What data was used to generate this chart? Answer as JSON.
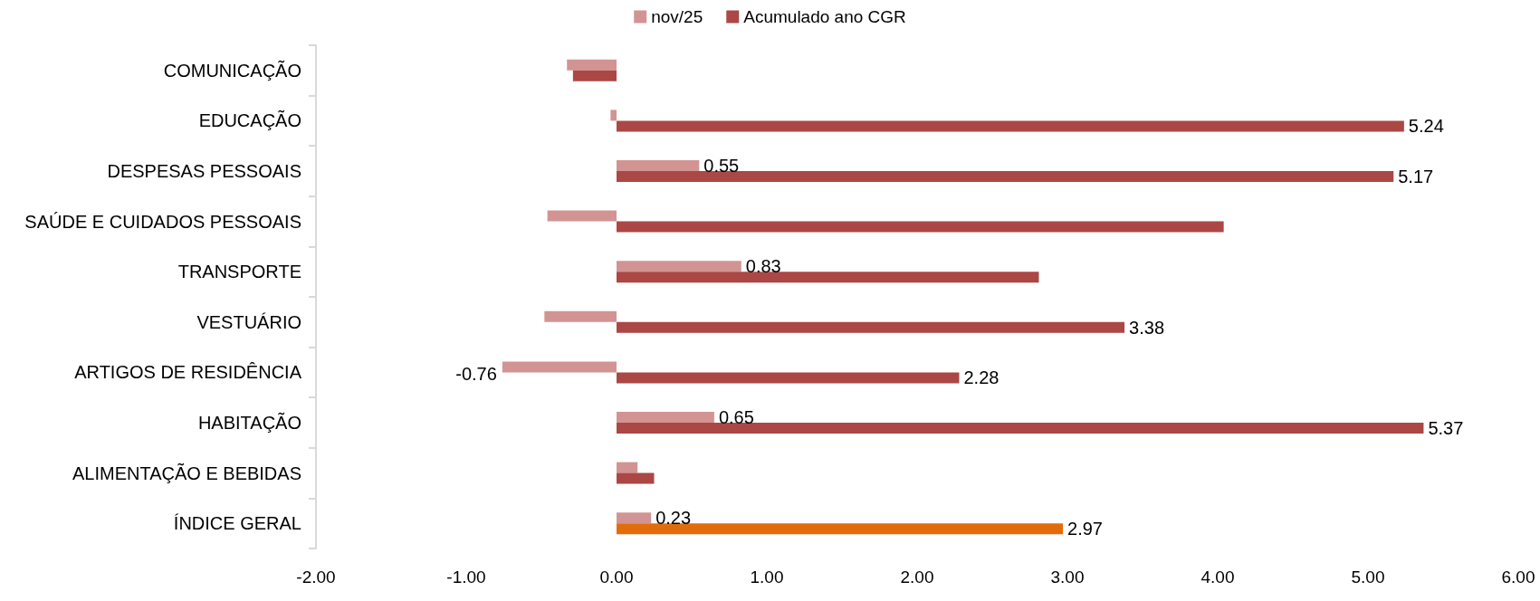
{
  "chart_data": {
    "type": "bar",
    "orientation": "horizontal",
    "categories": [
      "COMUNICAÇÃO",
      "EDUCAÇÃO",
      "DESPESAS PESSOAIS",
      "SAÚDE E CUIDADOS PESSOAIS",
      "TRANSPORTE",
      "VESTUÁRIO",
      "ARTIGOS DE RESIDÊNCIA",
      "HABITAÇÃO",
      "ALIMENTAÇÃO E BEBIDAS",
      "ÍNDICE GERAL"
    ],
    "series": [
      {
        "name": "nov/25",
        "color": "#d29493",
        "values": [
          -0.33,
          -0.04,
          0.55,
          -0.46,
          0.83,
          -0.48,
          -0.76,
          0.65,
          0.14,
          0.23
        ],
        "value_labels": [
          null,
          null,
          "0.55",
          null,
          "0.83",
          null,
          "-0.76",
          "0.65",
          null,
          "0.23"
        ]
      },
      {
        "name": "Acumulado ano CGR",
        "color": "#ab4745",
        "colors": [
          "#ab4745",
          "#ab4745",
          "#ab4745",
          "#ab4745",
          "#ab4745",
          "#ab4745",
          "#ab4745",
          "#ab4745",
          "#ab4745",
          "#e36c0a"
        ],
        "values": [
          -0.29,
          5.24,
          5.17,
          4.04,
          2.81,
          3.38,
          2.28,
          5.37,
          0.25,
          2.97
        ],
        "value_labels": [
          null,
          "5.24",
          "5.17",
          null,
          null,
          "3.38",
          "2.28",
          "5.37",
          null,
          "2.97"
        ]
      }
    ],
    "xlim": [
      -2,
      6
    ],
    "xticks": [
      {
        "value": -2,
        "label": "-2.00"
      },
      {
        "value": -1,
        "label": "-1.00"
      },
      {
        "value": 0,
        "label": "0.00"
      },
      {
        "value": 1,
        "label": "1.00"
      },
      {
        "value": 2,
        "label": "2.00"
      },
      {
        "value": 3,
        "label": "3.00"
      },
      {
        "value": 4,
        "label": "4.00"
      },
      {
        "value": 5,
        "label": "5.00"
      },
      {
        "value": 6,
        "label": "6.00"
      }
    ],
    "legend": "top",
    "grid": false
  }
}
